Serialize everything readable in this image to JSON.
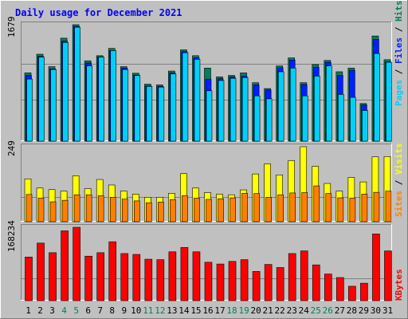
{
  "chart_data": [
    {
      "type": "bar",
      "title": "Daily usage for December 2021",
      "ylabel_max": "1679",
      "legend": [
        "Pages",
        "Files",
        "Hits"
      ],
      "categories": [
        "1",
        "2",
        "3",
        "4",
        "5",
        "6",
        "7",
        "8",
        "9",
        "10",
        "11",
        "12",
        "13",
        "14",
        "15",
        "16",
        "17",
        "18",
        "19",
        "20",
        "21",
        "22",
        "23",
        "24",
        "25",
        "26",
        "27",
        "28",
        "29",
        "30",
        "31"
      ],
      "weekend_days": [
        "4",
        "5",
        "11",
        "12",
        "18",
        "19",
        "25",
        "26"
      ],
      "series": [
        {
          "name": "Hits",
          "values": [
            935,
            1190,
            1020,
            1410,
            1594,
            1100,
            1170,
            1270,
            1020,
            930,
            780,
            770,
            960,
            1250,
            1170,
            1000,
            880,
            900,
            935,
            800,
            720,
            1030,
            1140,
            800,
            1050,
            1105,
            950,
            1000,
            515,
            1440,
            1115
          ]
        },
        {
          "name": "Files",
          "values": [
            900,
            1160,
            990,
            1370,
            1570,
            1070,
            1150,
            1240,
            1000,
            905,
            755,
            750,
            935,
            1225,
            1140,
            850,
            855,
            880,
            890,
            770,
            700,
            1005,
            1110,
            775,
            1010,
            1080,
            900,
            970,
            495,
            1395,
            1085
          ]
        },
        {
          "name": "Pages",
          "values": [
            850,
            1150,
            980,
            1350,
            1560,
            1030,
            1150,
            1240,
            980,
            900,
            750,
            740,
            920,
            1210,
            1120,
            690,
            830,
            860,
            870,
            620,
            580,
            950,
            1000,
            620,
            890,
            1030,
            640,
            600,
            420,
            1200,
            1080
          ]
        }
      ],
      "colors": {
        "Hits": "#00805c",
        "Files": "#0020ff",
        "Pages": "#00d0f8"
      }
    },
    {
      "type": "bar",
      "ylabel_max": "249",
      "legend": [
        "Sites",
        "Visits"
      ],
      "categories": [
        "1",
        "2",
        "3",
        "4",
        "5",
        "6",
        "7",
        "8",
        "9",
        "10",
        "11",
        "12",
        "13",
        "14",
        "15",
        "16",
        "17",
        "18",
        "19",
        "20",
        "21",
        "22",
        "23",
        "24",
        "25",
        "26",
        "27",
        "28",
        "29",
        "30",
        "31"
      ],
      "series": [
        {
          "name": "Visits",
          "values": [
            140,
            110,
            105,
            100,
            150,
            108,
            138,
            120,
            100,
            90,
            80,
            80,
            93,
            157,
            110,
            95,
            90,
            88,
            104,
            156,
            189,
            153,
            200,
            245,
            181,
            125,
            100,
            145,
            130,
            212,
            213
          ]
        },
        {
          "name": "Sites",
          "values": [
            89,
            77,
            65,
            70,
            88,
            88,
            85,
            80,
            74,
            68,
            62,
            64,
            72,
            85,
            77,
            73,
            75,
            78,
            93,
            92,
            80,
            88,
            94,
            95,
            117,
            92,
            78,
            77,
            90,
            96,
            100
          ]
        }
      ],
      "colors": {
        "Visits": "#ffff00",
        "Sites": "#ff8000"
      }
    },
    {
      "type": "bar",
      "ylabel_max": "168234",
      "legend": [
        "KBytes"
      ],
      "categories": [
        "1",
        "2",
        "3",
        "4",
        "5",
        "6",
        "7",
        "8",
        "9",
        "10",
        "11",
        "12",
        "13",
        "14",
        "15",
        "16",
        "17",
        "18",
        "19",
        "20",
        "21",
        "22",
        "23",
        "24",
        "25",
        "26",
        "27",
        "28",
        "29",
        "30",
        "31"
      ],
      "series": [
        {
          "name": "KBytes",
          "values": [
            100000,
            132000,
            110000,
            160000,
            168234,
            102000,
            110000,
            135000,
            108000,
            106000,
            95000,
            94000,
            112000,
            122000,
            112000,
            88000,
            84000,
            90000,
            94000,
            67000,
            83000,
            76000,
            108000,
            114000,
            82000,
            61000,
            53000,
            33000,
            40000,
            153000,
            114000
          ]
        }
      ],
      "colors": {
        "KBytes": "#ff0000"
      }
    }
  ],
  "colors": {
    "background": "#c0c0c0",
    "plot_bg": "#c0c0c0",
    "title": "#0000ff",
    "weekday_label": "#000000",
    "weekend_label": "#00805c"
  }
}
